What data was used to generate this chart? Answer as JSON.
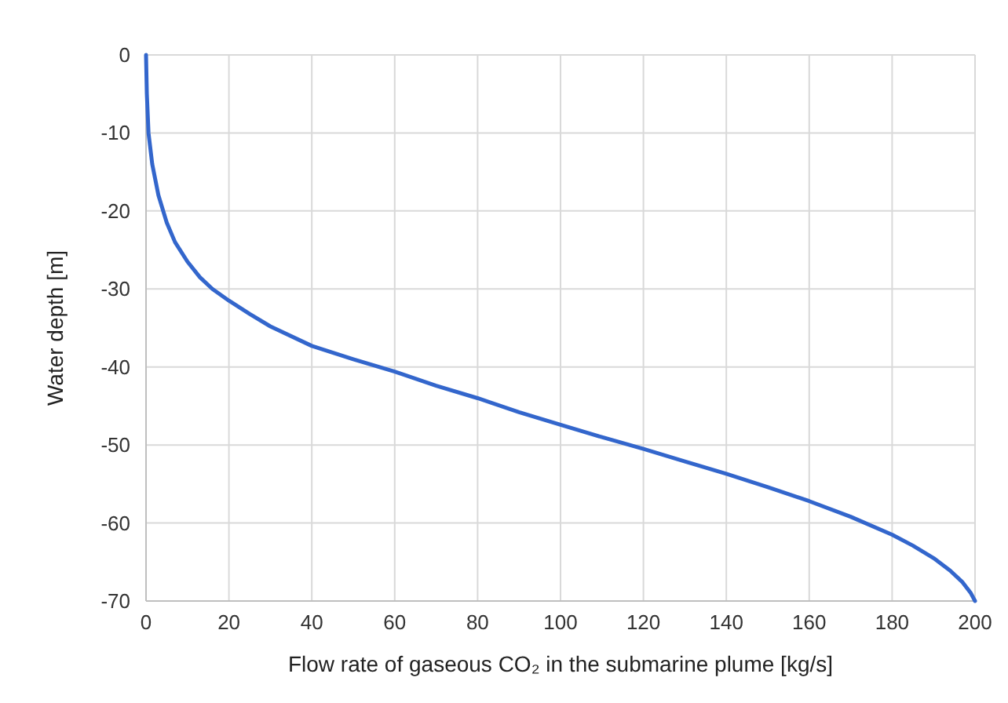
{
  "chart_data": {
    "type": "line",
    "xlabel": "Flow rate of gaseous CO₂ in the submarine plume  [kg/s]",
    "ylabel": "Water depth  [m]",
    "x": [
      0,
      0.2,
      0.6,
      1.5,
      3,
      5,
      7,
      10,
      13,
      16,
      20,
      25,
      30,
      40,
      50,
      60,
      70,
      80,
      90,
      100,
      110,
      120,
      130,
      140,
      150,
      160,
      170,
      180,
      185,
      190,
      194,
      197,
      199,
      200
    ],
    "series": [
      {
        "color": "#3366cc",
        "values": [
          0,
          -5,
          -10,
          -14,
          -18,
          -21.5,
          -24,
          -26.5,
          -28.5,
          -30,
          -31.5,
          -33.2,
          -34.8,
          -37.3,
          -39,
          -40.6,
          -42.4,
          -44,
          -45.8,
          -47.4,
          -49,
          -50.5,
          -52.1,
          -53.7,
          -55.4,
          -57.2,
          -59.2,
          -61.5,
          -62.9,
          -64.5,
          -66.1,
          -67.6,
          -69,
          -70
        ]
      }
    ],
    "xlim": [
      0,
      200
    ],
    "xticks": [
      0,
      20,
      40,
      60,
      80,
      100,
      120,
      140,
      160,
      180,
      200
    ],
    "ylim": [
      -70,
      0
    ],
    "yticks": [
      -70,
      -60,
      -50,
      -40,
      -30,
      -20,
      -10,
      0
    ],
    "grid": true,
    "line_style": "solid",
    "marker": "none"
  }
}
